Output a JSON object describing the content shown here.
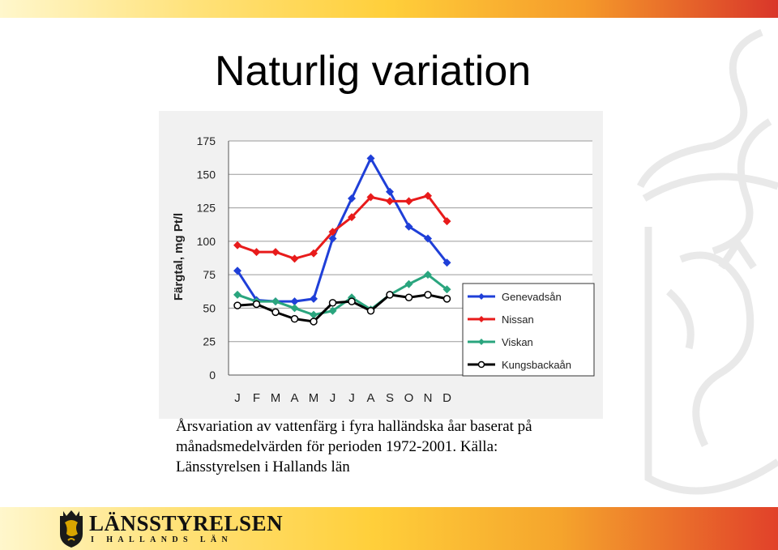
{
  "slide": {
    "title": "Naturlig variation",
    "caption_lines": [
      "Årsvariation av vattenfärg i fyra halländska åar baserat på",
      "månadsmedelvärden för perioden 1972-2001. Källa:",
      "Länsstyrelsen i Hallands län"
    ],
    "logo": {
      "name": "LÄNSSTYRELSEN",
      "subtitle": "I HALLANDS LÄN"
    },
    "colors": {
      "top_bar_start": "#fff7cc",
      "top_bar_end": "#d9362a",
      "chart_background": "#f1f1f1"
    }
  },
  "chart_data": {
    "type": "line",
    "title": "",
    "ylabel": "Färgtal, mg Pt/l",
    "xlabel": "",
    "categories": [
      "J",
      "F",
      "M",
      "A",
      "M",
      "J",
      "J",
      "A",
      "S",
      "O",
      "N",
      "D"
    ],
    "yticks": [
      0,
      25,
      50,
      75,
      100,
      125,
      150,
      175
    ],
    "ylim": [
      0,
      175
    ],
    "grid": true,
    "legend_position": "right",
    "series": [
      {
        "name": "Genevadsån",
        "color": "#1f3fd8",
        "marker": "diamond-filled",
        "values": [
          78,
          56,
          55,
          55,
          57,
          102,
          132,
          162,
          137,
          111,
          102,
          84
        ]
      },
      {
        "name": "Nissan",
        "color": "#e81b1b",
        "marker": "diamond-filled",
        "values": [
          97,
          92,
          92,
          87,
          91,
          107,
          118,
          133,
          130,
          130,
          134,
          115
        ]
      },
      {
        "name": "Viskan",
        "color": "#2aa57e",
        "marker": "diamond-filled",
        "values": [
          60,
          55,
          55,
          50,
          45,
          48,
          58,
          49,
          60,
          68,
          75,
          64
        ]
      },
      {
        "name": "Kungsbackaån",
        "color": "#000000",
        "marker": "circle-open",
        "values": [
          52,
          53,
          47,
          42,
          40,
          54,
          55,
          48,
          60,
          58,
          60,
          57
        ]
      }
    ]
  }
}
